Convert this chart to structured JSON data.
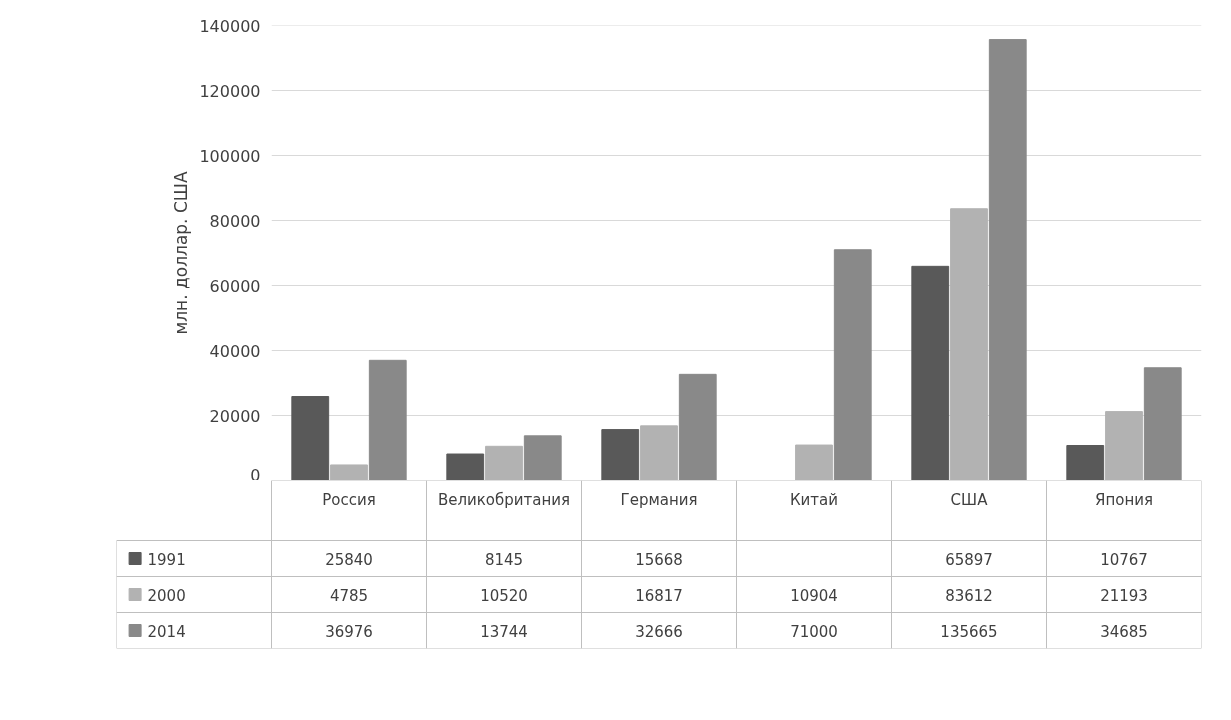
{
  "chart_data": {
    "type": "bar",
    "ylabel": "млн. доллар. США",
    "categories": [
      "Россия",
      "Великобритания",
      "Германия",
      "Китай",
      "США",
      "Япония"
    ],
    "series": [
      {
        "name": "1991",
        "color": "#595959",
        "values": [
          25840,
          8145,
          15668,
          null,
          65897,
          10767
        ]
      },
      {
        "name": "2000",
        "color": "#b2b2b2",
        "values": [
          4785,
          10520,
          16817,
          10904,
          83612,
          21193
        ]
      },
      {
        "name": "2014",
        "color": "#898989",
        "values": [
          36976,
          13744,
          32666,
          71000,
          135665,
          34685
        ]
      }
    ],
    "ylim": [
      0,
      140000
    ],
    "yticks": [
      0,
      20000,
      40000,
      60000,
      80000,
      100000,
      120000,
      140000
    ],
    "grid": "y",
    "legend": "bottom",
    "data_labels": true
  }
}
